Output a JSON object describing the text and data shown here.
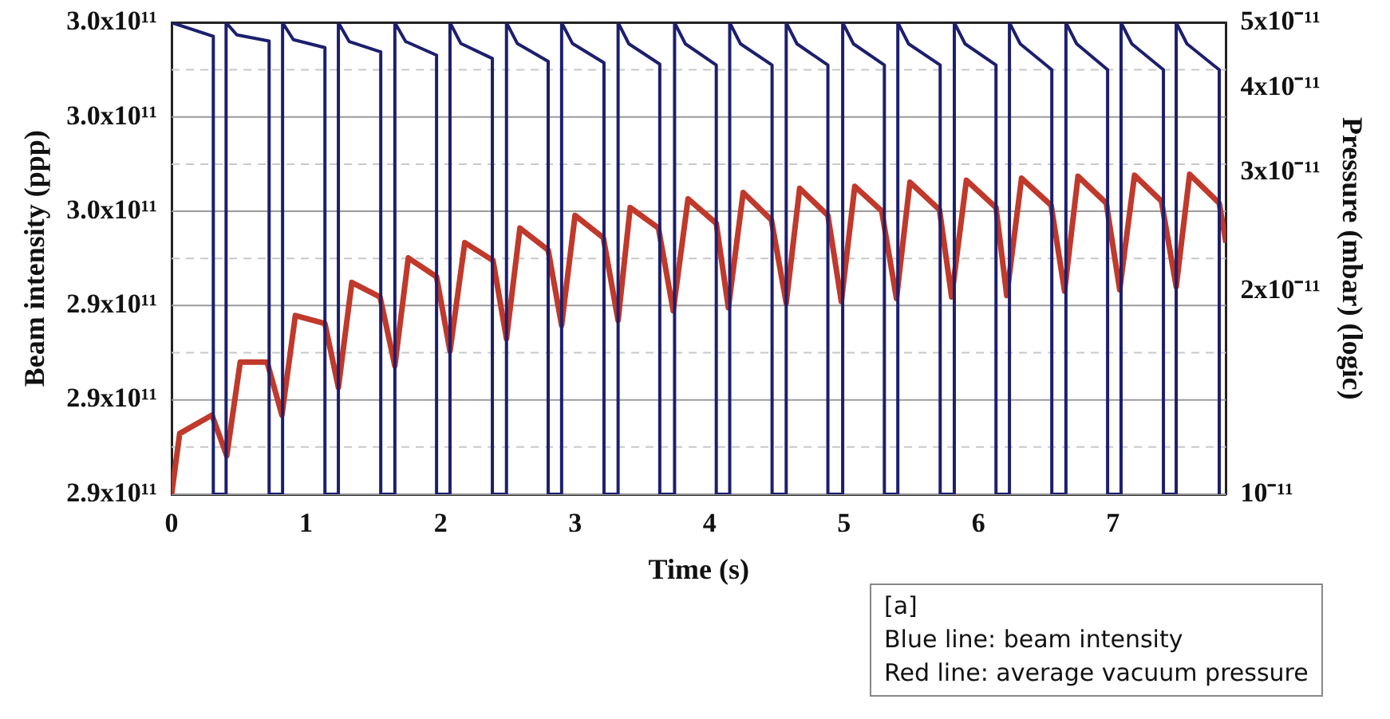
{
  "chart_data": {
    "type": "line",
    "xlabel": "Time (s)",
    "ylabel": "Beam intensity (ppp)",
    "y2label": "Pressure (mbar) (logic)",
    "xlim": [
      0,
      7.84
    ],
    "xticks": [
      0,
      1,
      2,
      3,
      4,
      5,
      6,
      7
    ],
    "ylim": [
      290000000000.0,
      300000000000.0
    ],
    "yticks": [
      {
        "value": 290000000000.0,
        "label": "2.9x10¹¹"
      },
      {
        "value": 291000000000.0,
        "label": null
      },
      {
        "value": 292000000000.0,
        "label": "2.9x10¹¹"
      },
      {
        "value": 293000000000.0,
        "label": null
      },
      {
        "value": 294000000000.0,
        "label": "2.9x10¹¹"
      },
      {
        "value": 295000000000.0,
        "label": null
      },
      {
        "value": 296000000000.0,
        "label": "3.0x10¹¹"
      },
      {
        "value": 297000000000.0,
        "label": null
      },
      {
        "value": 298000000000.0,
        "label": "3.0x10¹¹"
      },
      {
        "value": 299000000000.0,
        "label": null
      },
      {
        "value": 300000000000.0,
        "label": "3.0x10¹¹"
      }
    ],
    "y2lim": [
      1e-11,
      5e-11
    ],
    "y2ticks": [
      {
        "value": 1e-11,
        "label": "10⁻¹¹"
      },
      {
        "value": 2e-11,
        "label": "2x10⁻¹¹"
      },
      {
        "value": 3e-11,
        "label": "3x10⁻¹¹"
      },
      {
        "value": 4e-11,
        "label": "4x10⁻¹¹"
      },
      {
        "value": 5e-11,
        "label": "5x10⁻¹¹"
      }
    ],
    "log": "y2",
    "grid": "y",
    "legend": false,
    "marker": "none",
    "line_style": "solid",
    "annotations": [
      "[a]",
      "Blue line: beam intensity",
      "Red line: average vacuum pressure"
    ],
    "series": [
      {
        "type": "line",
        "color": "#1c1f6e",
        "axis": "y",
        "x": [
          0,
          0.31,
          0.31,
          0.405,
          0.405,
          0.485,
          0.725,
          0.725,
          0.825,
          0.825,
          0.905,
          1.14,
          1.14,
          1.24,
          1.24,
          1.32,
          1.555,
          1.555,
          1.66,
          1.66,
          1.74,
          1.97,
          1.97,
          2.07,
          2.07,
          2.15,
          2.385,
          2.385,
          2.49,
          2.49,
          2.57,
          2.8,
          2.8,
          2.9,
          2.9,
          2.98,
          3.215,
          3.215,
          3.32,
          3.32,
          3.4,
          3.63,
          3.63,
          3.74,
          3.74,
          3.82,
          4.05,
          4.05,
          4.15,
          4.15,
          4.23,
          4.465,
          4.465,
          4.57,
          4.57,
          4.65,
          4.88,
          4.88,
          4.99,
          4.99,
          5.07,
          5.3,
          5.3,
          5.4,
          5.4,
          5.48,
          5.715,
          5.715,
          5.82,
          5.82,
          5.9,
          6.13,
          6.13,
          6.23,
          6.23,
          6.31,
          6.545,
          6.545,
          6.65,
          6.65,
          6.73,
          6.96,
          6.96,
          7.06,
          7.06,
          7.14,
          7.375,
          7.375,
          7.47,
          7.47,
          7.55,
          7.79,
          7.79
        ],
        "values": [
          300000000000.0,
          299710000000.0,
          290000000000.0,
          290000000000.0,
          300000000000.0,
          299740000000.0,
          299610000000.0,
          290000000000.0,
          290000000000.0,
          300000000000.0,
          299640000000.0,
          299470000000.0,
          290000000000.0,
          290000000000.0,
          300000000000.0,
          299600000000.0,
          299380000000.0,
          290000000000.0,
          290000000000.0,
          300000000000.0,
          299600000000.0,
          299310000000.0,
          290000000000.0,
          290000000000.0,
          300000000000.0,
          299560000000.0,
          299240000000.0,
          290000000000.0,
          290000000000.0,
          300000000000.0,
          299560000000.0,
          299180000000.0,
          290000000000.0,
          290000000000.0,
          300000000000.0,
          299560000000.0,
          299150000000.0,
          290000000000.0,
          290000000000.0,
          300000000000.0,
          299550000000.0,
          299120000000.0,
          290000000000.0,
          290000000000.0,
          300000000000.0,
          299550000000.0,
          299100000000.0,
          290000000000.0,
          290000000000.0,
          300000000000.0,
          299550000000.0,
          299100000000.0,
          290000000000.0,
          290000000000.0,
          300000000000.0,
          299550000000.0,
          299100000000.0,
          290000000000.0,
          290000000000.0,
          300000000000.0,
          299550000000.0,
          299100000000.0,
          290000000000.0,
          290000000000.0,
          300000000000.0,
          299550000000.0,
          299100000000.0,
          290000000000.0,
          290000000000.0,
          300000000000.0,
          299550000000.0,
          299100000000.0,
          290000000000.0,
          290000000000.0,
          300000000000.0,
          299550000000.0,
          299000000000.0,
          290000000000.0,
          290000000000.0,
          300000000000.0,
          299550000000.0,
          299000000000.0,
          290000000000.0,
          290000000000.0,
          300000000000.0,
          299550000000.0,
          299000000000.0,
          290000000000.0,
          290000000000.0,
          300000000000.0,
          299550000000.0,
          299000000000.0,
          290000000000.0
        ]
      },
      {
        "type": "line",
        "color": "#c0392b",
        "axis": "y2",
        "x": [
          0,
          0.06,
          0.3,
          0.41,
          0.51,
          0.71,
          0.82,
          0.92,
          1.14,
          1.24,
          1.34,
          1.55,
          1.66,
          1.76,
          1.97,
          2.07,
          2.18,
          2.39,
          2.49,
          2.59,
          2.8,
          2.9,
          3.0,
          3.21,
          3.32,
          3.41,
          3.62,
          3.73,
          3.84,
          4.05,
          4.14,
          4.25,
          4.46,
          4.57,
          4.67,
          4.88,
          4.98,
          5.08,
          5.28,
          5.39,
          5.49,
          5.71,
          5.8,
          5.91,
          6.13,
          6.21,
          6.32,
          6.54,
          6.64,
          6.74,
          6.95,
          7.05,
          7.16,
          7.36,
          7.47,
          7.57,
          7.79,
          7.84
        ],
        "values": [
          1e-11,
          1.23e-11,
          1.31e-11,
          1.14e-11,
          1.57e-11,
          1.57e-11,
          1.31e-11,
          1.84e-11,
          1.79e-11,
          1.44e-11,
          2.06e-11,
          1.96e-11,
          1.55e-11,
          2.24e-11,
          2.1e-11,
          1.63e-11,
          2.36e-11,
          2.22e-11,
          1.7e-11,
          2.48e-11,
          2.3e-11,
          1.78e-11,
          2.59e-11,
          2.4e-11,
          1.81e-11,
          2.66e-11,
          2.48e-11,
          1.87e-11,
          2.74e-11,
          2.52e-11,
          1.89e-11,
          2.8e-11,
          2.55e-11,
          1.92e-11,
          2.84e-11,
          2.59e-11,
          1.93e-11,
          2.86e-11,
          2.63e-11,
          1.95e-11,
          2.9e-11,
          2.64e-11,
          1.96e-11,
          2.92e-11,
          2.66e-11,
          1.97e-11,
          2.94e-11,
          2.68e-11,
          2e-11,
          2.96e-11,
          2.7e-11,
          2.01e-11,
          2.97e-11,
          2.72e-11,
          2.03e-11,
          2.98e-11,
          2.7e-11,
          2.36e-11
        ]
      }
    ]
  }
}
